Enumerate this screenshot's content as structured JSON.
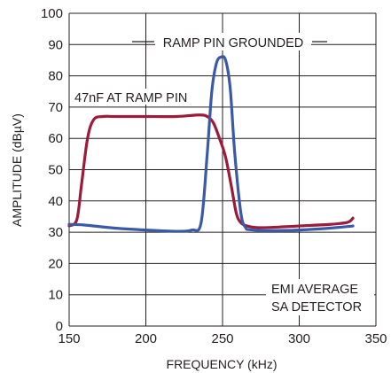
{
  "chart_data": {
    "type": "line",
    "xlabel": "FREQUENCY (kHz)",
    "ylabel": "AMPLITUDE (dBµV)",
    "xlim": [
      150,
      350
    ],
    "ylim": [
      0,
      100
    ],
    "x_ticks": [
      "150",
      "200",
      "250",
      "300",
      "350"
    ],
    "y_ticks": [
      "0",
      "10",
      "20",
      "30",
      "40",
      "50",
      "60",
      "70",
      "80",
      "90",
      "100"
    ],
    "grid": true,
    "series": [
      {
        "name": "47nF AT RAMP PIN",
        "color": "#9b1b3a",
        "x": [
          150,
          155,
          158,
          162,
          166,
          172,
          180,
          200,
          220,
          235,
          240,
          244,
          248,
          252,
          256,
          259,
          262,
          266,
          272,
          280,
          300,
          320,
          330,
          333,
          335
        ],
        "y": [
          32,
          34,
          45,
          60,
          66,
          67,
          67,
          67,
          67,
          67.5,
          67,
          65,
          60,
          54,
          44,
          36,
          33,
          32,
          31.5,
          31.5,
          32,
          32.5,
          33,
          33.5,
          34.5
        ]
      },
      {
        "name": "RAMP PIN GROUNDED",
        "color": "#3a5aa8",
        "x": [
          150,
          160,
          180,
          200,
          220,
          230,
          236,
          240,
          243,
          246,
          249,
          252,
          255,
          258,
          262,
          265,
          268,
          280,
          300,
          320,
          335
        ],
        "y": [
          32.5,
          32.3,
          31.3,
          30.7,
          30.3,
          30.7,
          33,
          55,
          75,
          84,
          86,
          85,
          76,
          55,
          36,
          31.5,
          30.8,
          30.5,
          30.7,
          31.3,
          32
        ]
      }
    ],
    "annotations": {
      "ramp_grounded": "RAMP PIN GROUNDED",
      "nf47": "47nF AT RAMP PIN",
      "detector_line1": "EMI AVERAGE",
      "detector_line2": "SA DETECTOR"
    }
  }
}
